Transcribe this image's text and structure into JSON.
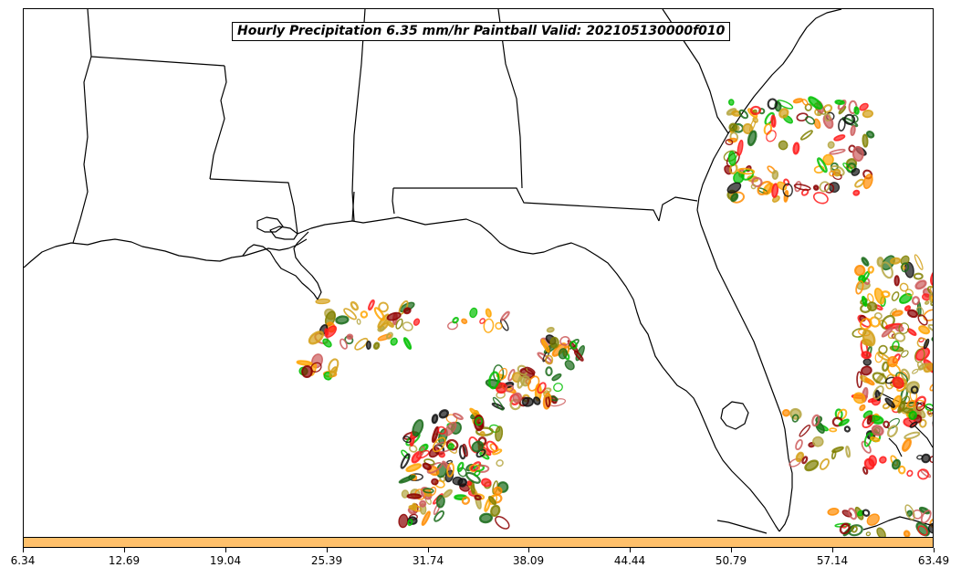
{
  "map": {
    "title": "Hourly Precipitation 6.35 mm/hr Paintball Valid: 202105130000f010",
    "colors": {
      "coastline": "#000000",
      "background": "#ffffff",
      "member_palette": [
        "#8b0000",
        "#ff1a1a",
        "#ff8c00",
        "#ffa500",
        "#808000",
        "#b5a642",
        "#00c000",
        "#1a6b1a",
        "#111111",
        "#cd5c5c",
        "#d4a017"
      ]
    },
    "regions_shown": [
      "Louisiana",
      "Mississippi",
      "Alabama",
      "Georgia",
      "Florida",
      "Gulf of Mexico",
      "Atlantic Ocean"
    ]
  },
  "colorbar": {
    "fill_color": "#ffc06b",
    "ticks": [
      "6.34",
      "12.69",
      "19.04",
      "25.39",
      "31.74",
      "38.09",
      "44.44",
      "50.79",
      "57.14",
      "63.49"
    ]
  }
}
